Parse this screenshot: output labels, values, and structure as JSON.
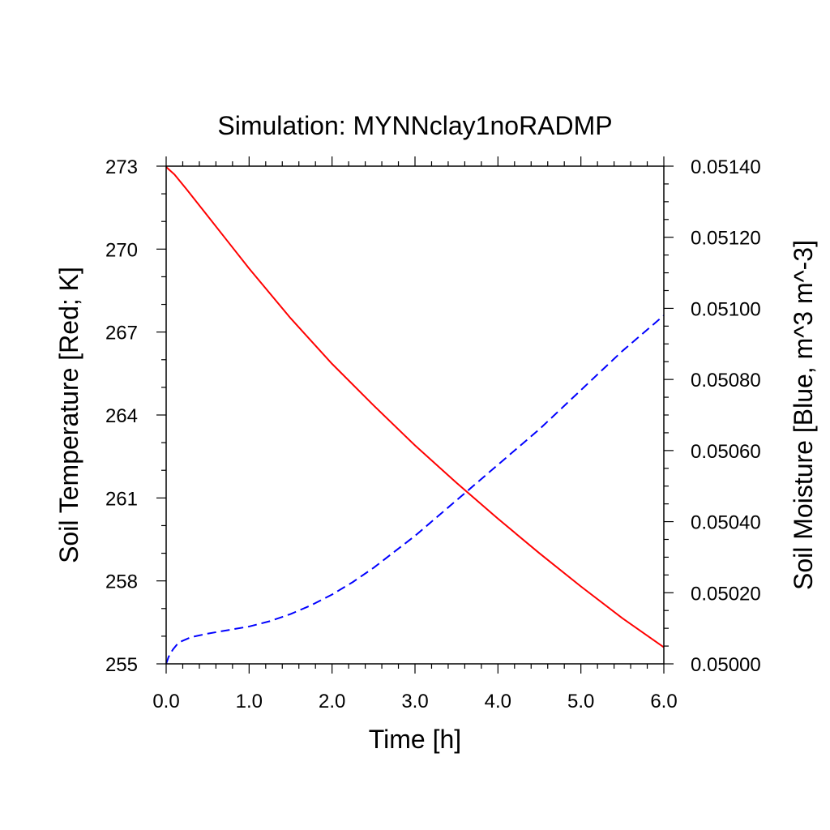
{
  "chart_data": {
    "type": "line",
    "title": "Simulation: MYNNclay1noRADMP",
    "xlabel": "Time [h]",
    "ylabel_left": "Soil Temperature [Red; K]",
    "ylabel_right": "Soil Moisture [Blue, m^3 m^-3]",
    "xlim": [
      0,
      6
    ],
    "ylim_left": [
      255,
      273
    ],
    "ylim_right": [
      0.05,
      0.0514
    ],
    "x_ticks": [
      "0.0",
      "1.0",
      "2.0",
      "3.0",
      "4.0",
      "5.0",
      "6.0"
    ],
    "y_left_ticks": [
      "255",
      "258",
      "261",
      "264",
      "267",
      "270",
      "273"
    ],
    "y_right_ticks": [
      "0.05000",
      "0.05020",
      "0.05040",
      "0.05060",
      "0.05080",
      "0.05100",
      "0.05120",
      "0.05140"
    ],
    "grid": false,
    "series": [
      {
        "axis": "left",
        "color": "#ff0000",
        "style": "solid",
        "x": [
          0,
          0.1,
          0.25,
          0.5,
          0.75,
          1.0,
          1.5,
          2.0,
          2.5,
          3.0,
          3.5,
          4.0,
          4.5,
          5.0,
          5.5,
          6.0
        ],
        "y": [
          272.97,
          272.7,
          272.15,
          271.2,
          270.25,
          269.3,
          267.5,
          265.85,
          264.35,
          262.9,
          261.55,
          260.25,
          259.0,
          257.8,
          256.65,
          255.6
        ]
      },
      {
        "axis": "right",
        "color": "#0000ff",
        "style": "dashed",
        "x": [
          0,
          0.03,
          0.08,
          0.15,
          0.3,
          0.5,
          0.75,
          1.0,
          1.25,
          1.5,
          1.75,
          2.0,
          2.25,
          2.5,
          2.75,
          3.0,
          3.25,
          3.5,
          4.0,
          4.5,
          5.0,
          5.5,
          6.0
        ],
        "y": [
          0.05,
          0.05002,
          0.05004,
          0.05006,
          0.050075,
          0.050085,
          0.050095,
          0.050105,
          0.05012,
          0.05014,
          0.050165,
          0.050195,
          0.05023,
          0.05027,
          0.050315,
          0.05036,
          0.05041,
          0.05046,
          0.05056,
          0.05066,
          0.05077,
          0.05088,
          0.05098
        ]
      }
    ]
  }
}
